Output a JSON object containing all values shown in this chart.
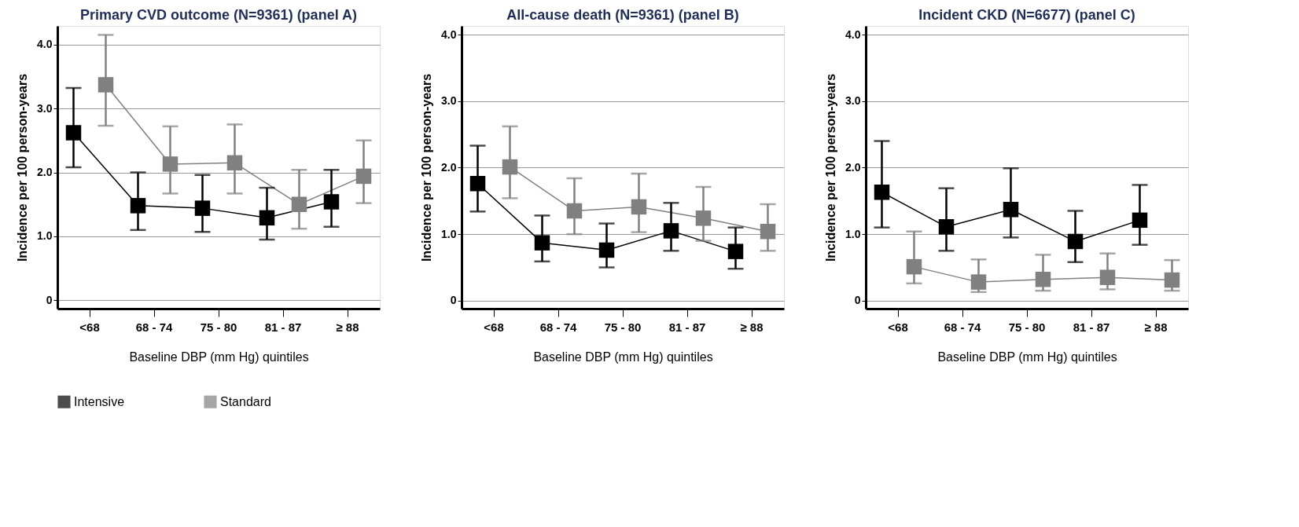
{
  "chart_data": [
    {
      "type": "line",
      "title": "Primary CVD outcome (N=9361) (panel A)",
      "xlabel": "Baseline DBP (mm Hg) quintiles",
      "ylabel": "Incidence per 100 person-years",
      "categories": [
        "<68",
        "68 - 74",
        "75 - 80",
        "81 - 87",
        "≥ 88"
      ],
      "ylim": [
        -0.13,
        4.29
      ],
      "yticks": [
        0,
        {
          "value": 1,
          "label": "1.0"
        },
        {
          "value": 2,
          "label": "2.0"
        },
        {
          "value": 3,
          "label": "3.0"
        },
        {
          "value": 4,
          "label": "4.0"
        }
      ],
      "grid": "y",
      "marker": "square",
      "legend": "bottom",
      "series": [
        {
          "name": "Intensive",
          "color": "#000000",
          "values": [
            2.62,
            1.48,
            1.44,
            1.29,
            1.54
          ],
          "errors": [
            [
              2.08,
              3.32
            ],
            [
              1.1,
              2.0
            ],
            [
              1.07,
              1.96
            ],
            [
              0.95,
              1.76
            ],
            [
              1.15,
              2.04
            ]
          ]
        },
        {
          "name": "Standard",
          "color": "#808080",
          "values": [
            3.37,
            2.13,
            2.15,
            1.5,
            1.94
          ],
          "errors": [
            [
              2.73,
              4.15
            ],
            [
              1.67,
              2.72
            ],
            [
              1.67,
              2.75
            ],
            [
              1.12,
              2.04
            ],
            [
              1.52,
              2.5
            ]
          ]
        }
      ]
    },
    {
      "type": "line",
      "title": "All-cause death (N=9361) (panel B)",
      "xlabel": "Baseline DBP (mm Hg) quintiles",
      "ylabel": "Incidence per 100 person-years",
      "categories": [
        "<68",
        "68 - 74",
        "75 - 80",
        "81 - 87",
        "≥ 88"
      ],
      "ylim": [
        -0.12,
        4.13
      ],
      "yticks": [
        0,
        {
          "value": 1,
          "label": "1.0"
        },
        {
          "value": 2,
          "label": "2.0"
        },
        {
          "value": 3,
          "label": "3.0"
        },
        {
          "value": 4,
          "label": "4.0"
        }
      ],
      "grid": "y",
      "marker": "square",
      "legend": "bottom",
      "series": [
        {
          "name": "Intensive",
          "color": "#000000",
          "values": [
            1.76,
            0.87,
            0.76,
            1.05,
            0.74
          ],
          "errors": [
            [
              1.34,
              2.33
            ],
            [
              0.59,
              1.28
            ],
            [
              0.5,
              1.16
            ],
            [
              0.75,
              1.47
            ],
            [
              0.48,
              1.1
            ]
          ]
        },
        {
          "name": "Standard",
          "color": "#808080",
          "values": [
            2.01,
            1.35,
            1.41,
            1.24,
            1.04
          ],
          "errors": [
            [
              1.54,
              2.62
            ],
            [
              1.0,
              1.84
            ],
            [
              1.03,
              1.91
            ],
            [
              0.9,
              1.71
            ],
            [
              0.75,
              1.45
            ]
          ]
        }
      ]
    },
    {
      "type": "line",
      "title": "Incident CKD (N=6677) (panel C)",
      "xlabel": "Baseline DBP (mm Hg) quintiles",
      "ylabel": "Incidence per 100 person-years",
      "categories": [
        "<68",
        "68 - 74",
        "75 - 80",
        "81 - 87",
        "≥ 88"
      ],
      "ylim": [
        -0.12,
        4.13
      ],
      "yticks": [
        0,
        {
          "value": 1,
          "label": "1.0"
        },
        {
          "value": 2,
          "label": "2.0"
        },
        {
          "value": 3,
          "label": "3.0"
        },
        {
          "value": 4,
          "label": "4.0"
        }
      ],
      "grid": "y",
      "marker": "square",
      "legend": "bottom",
      "series": [
        {
          "name": "Intensive",
          "color": "#000000",
          "values": [
            1.63,
            1.11,
            1.37,
            0.89,
            1.21
          ],
          "errors": [
            [
              1.1,
              2.4
            ],
            [
              0.75,
              1.69
            ],
            [
              0.95,
              1.99
            ],
            [
              0.58,
              1.35
            ],
            [
              0.84,
              1.74
            ]
          ]
        },
        {
          "name": "Standard",
          "color": "#808080",
          "values": [
            0.51,
            0.28,
            0.32,
            0.35,
            0.31
          ],
          "errors": [
            [
              0.26,
              1.04
            ],
            [
              0.13,
              0.62
            ],
            [
              0.15,
              0.69
            ],
            [
              0.17,
              0.71
            ],
            [
              0.15,
              0.61
            ]
          ]
        }
      ]
    }
  ]
}
